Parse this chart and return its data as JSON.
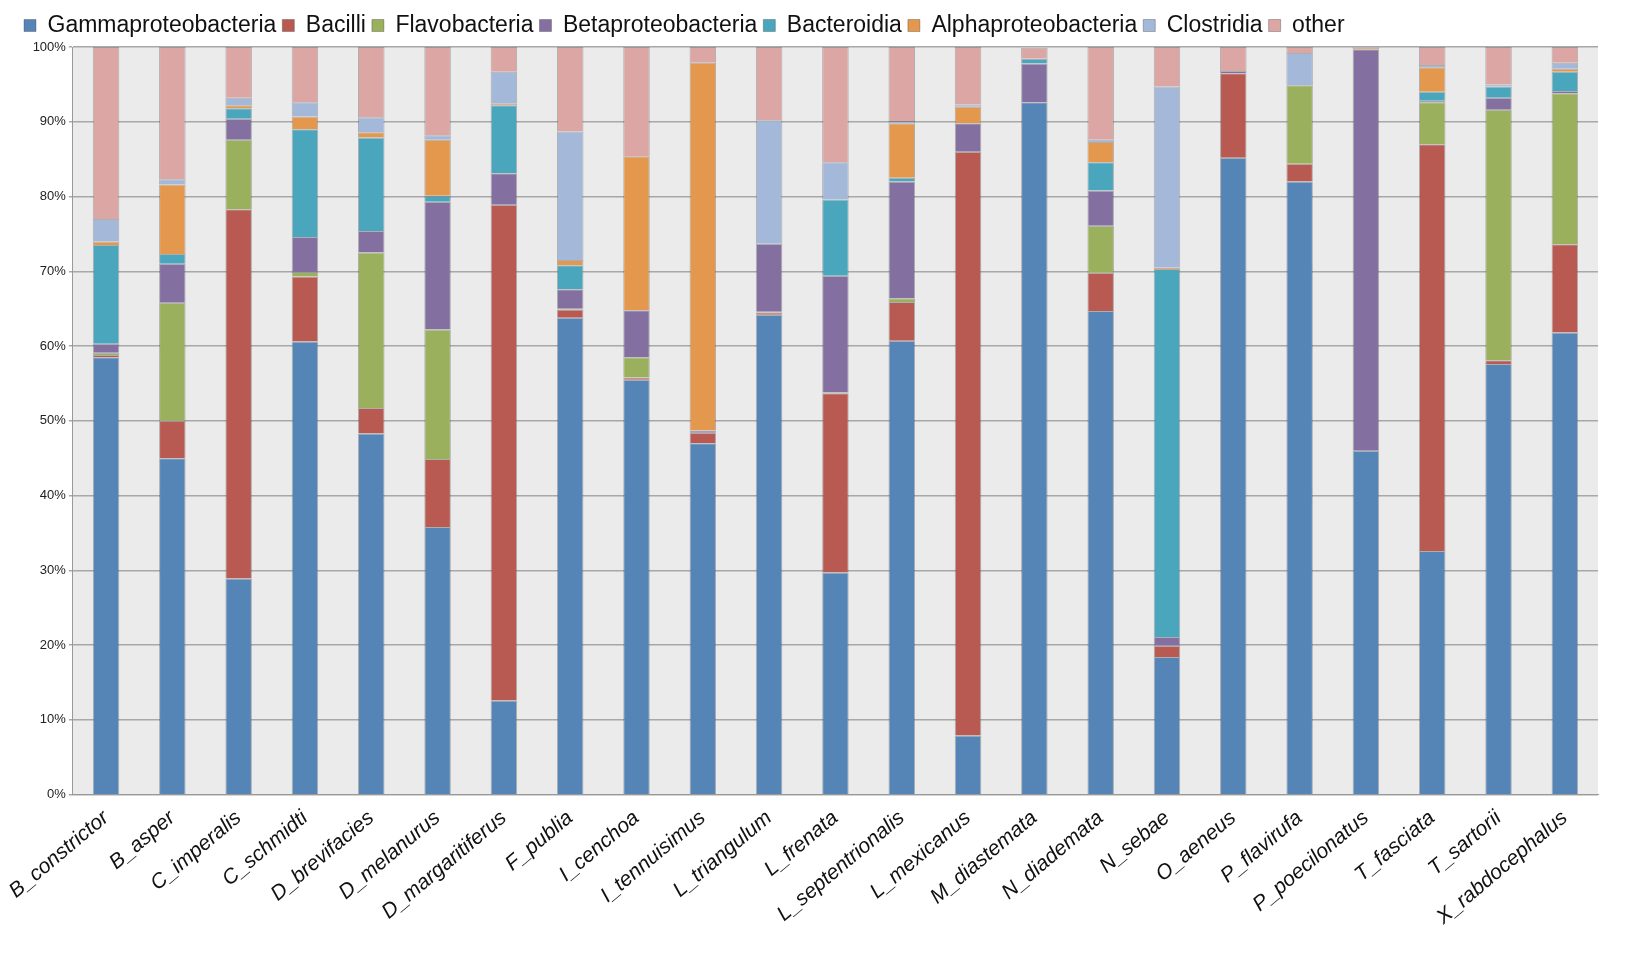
{
  "chart_data": {
    "type": "bar",
    "stacked": true,
    "legend": "top",
    "grid": "y",
    "categories": [
      "B_constrictor",
      "B_asper",
      "C_imperalis",
      "C_schmidti",
      "D_brevifacies",
      "D_melanurus",
      "D_margaritiferus",
      "F_publia",
      "I_cenchoa",
      "I_tennuisimus",
      "L_triangulum",
      "L_frenata",
      "L_septentrionalis",
      "L_mexicanus",
      "M_diastemata",
      "N_diademata",
      "N_sebae",
      "O_aeneus",
      "P_flavirufa",
      "P_poecilonatus",
      "T_fasciata",
      "T_sartorii",
      "X_rabdocephalus"
    ],
    "ylim": [
      0,
      100
    ],
    "yticks": [
      {
        "value": 0,
        "label": "0%"
      },
      {
        "value": 10,
        "label": "10%"
      },
      {
        "value": 20,
        "label": "20%"
      },
      {
        "value": 30,
        "label": "30%"
      },
      {
        "value": 40,
        "label": "40%"
      },
      {
        "value": 50,
        "label": "50%"
      },
      {
        "value": 60,
        "label": "60%"
      },
      {
        "value": 70,
        "label": "70%"
      },
      {
        "value": 80,
        "label": "80%"
      },
      {
        "value": 90,
        "label": "90%"
      },
      {
        "value": 100,
        "label": "100%"
      }
    ],
    "series": [
      {
        "name": "Gammaproteobacteria",
        "color": "#5585b6",
        "values": [
          58.5,
          45,
          28.9,
          60.6,
          48.3,
          35.8,
          12.6,
          63.8,
          55.5,
          47,
          64.2,
          29.7,
          60.7,
          7.9,
          92.6,
          64.7,
          18.4,
          85.2,
          82,
          46,
          32.6,
          57.6,
          61.8
        ]
      },
      {
        "name": "Bacilli",
        "color": "#b85a51",
        "values": [
          0.3,
          5,
          49.4,
          8.7,
          3.4,
          9.1,
          66.3,
          1.1,
          0.3,
          1.4,
          0.3,
          24,
          5.2,
          78.1,
          null,
          5.1,
          1.5,
          11.3,
          2.4,
          0,
          54.4,
          0.5,
          11.8
        ]
      },
      {
        "name": "Flavobacteria",
        "color": "#9ab05c",
        "values": [
          0.3,
          15.8,
          9.3,
          0.6,
          20.8,
          17.3,
          0,
          0.1,
          2.7,
          0,
          0.1,
          0.1,
          0.5,
          0,
          0,
          6.3,
          0,
          0,
          10.5,
          0,
          5.6,
          33.5,
          20.2
        ]
      },
      {
        "name": "Betaproteobacteria",
        "color": "#8470a0",
        "values": [
          1.2,
          5.2,
          2.8,
          4.7,
          2.9,
          17.1,
          4.2,
          2.6,
          6.3,
          0.3,
          9.1,
          15.6,
          15.6,
          3.8,
          5.2,
          4.7,
          1.2,
          0.3,
          0,
          53.7,
          0.2,
          1.6,
          0.3
        ]
      },
      {
        "name": "Bacteroidia",
        "color": "#4aa6bd",
        "values": [
          13.2,
          1.3,
          1.4,
          14.4,
          12.5,
          0.8,
          9.1,
          3.2,
          0,
          0,
          0,
          10.2,
          0.5,
          0,
          0.6,
          3.8,
          49.2,
          0,
          0,
          0,
          1.2,
          1.5,
          2.6
        ]
      },
      {
        "name": "Alphaproteobacteria",
        "color": "#e4984e",
        "values": [
          0.5,
          9.3,
          0.4,
          1.7,
          0.7,
          7.5,
          0.2,
          0.7,
          20.6,
          49.2,
          0,
          0,
          7.3,
          2.2,
          0,
          2.7,
          0.2,
          0,
          0,
          0.2,
          3.3,
          0,
          0.4
        ]
      },
      {
        "name": "Clostridia",
        "color": "#a4b8da",
        "values": [
          3,
          0.7,
          1,
          1.9,
          2,
          0.6,
          4.3,
          17.2,
          0,
          0,
          16.5,
          5,
          0.3,
          0.3,
          0.1,
          0.3,
          24.2,
          0,
          4.3,
          0,
          0.3,
          0.3,
          0.8
        ]
      },
      {
        "name": "other",
        "color": "#dca6a5",
        "values": [
          23,
          17.7,
          6.8,
          7.4,
          9.4,
          11.8,
          3.3,
          11.3,
          14.6,
          2.1,
          9.8,
          15.4,
          9.9,
          7.7,
          1.4,
          12.4,
          5.3,
          3.2,
          0.8,
          0.1,
          2.4,
          5,
          2.1
        ]
      }
    ]
  }
}
